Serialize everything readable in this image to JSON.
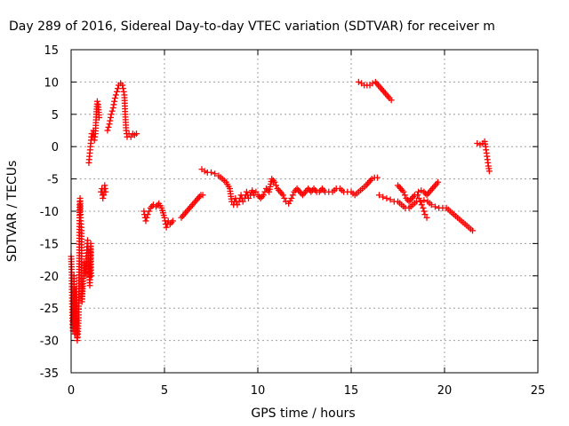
{
  "chart_data": {
    "type": "scatter",
    "title": "Day 289 of 2016, Sidereal Day-to-day VTEC variation (SDTVAR) for receiver m",
    "xlabel": "GPS time / hours",
    "ylabel": "SDTVAR / TECUs",
    "xlim": [
      0,
      25
    ],
    "ylim": [
      -35,
      15
    ],
    "xticks": [
      0,
      5,
      10,
      15,
      20,
      25
    ],
    "yticks": [
      -35,
      -30,
      -25,
      -20,
      -15,
      -10,
      -5,
      0,
      5,
      10,
      15
    ],
    "grid": true,
    "marker": "plus",
    "color": "#ff0000",
    "series": [
      {
        "points": [
          [
            0.0,
            -17.0
          ],
          [
            0.03,
            -19.0
          ],
          [
            0.05,
            -23.0
          ],
          [
            0.07,
            -27.0
          ],
          [
            0.1,
            -28.5
          ],
          [
            0.13,
            -26.0
          ],
          [
            0.15,
            -20.0
          ],
          [
            0.18,
            -24.0
          ],
          [
            0.2,
            -29.0
          ],
          [
            0.23,
            -27.0
          ],
          [
            0.25,
            -22.0
          ],
          [
            0.28,
            -25.0
          ],
          [
            0.3,
            -28.0
          ],
          [
            0.33,
            -30.0
          ],
          [
            0.36,
            -29.0
          ],
          [
            0.4,
            -26.5
          ],
          [
            0.42,
            -22.0
          ],
          [
            0.44,
            -16.0
          ],
          [
            0.45,
            -11.0
          ],
          [
            0.46,
            -9.0
          ],
          [
            0.48,
            -8.0
          ],
          [
            0.5,
            -10.0
          ],
          [
            0.52,
            -11.5
          ],
          [
            0.55,
            -13.0
          ],
          [
            0.58,
            -24.0
          ],
          [
            0.62,
            -22.0
          ],
          [
            0.66,
            -20.0
          ],
          [
            0.7,
            -18.0
          ],
          [
            0.75,
            -20.0
          ],
          [
            0.8,
            -19.0
          ],
          [
            0.82,
            -17.0
          ],
          [
            0.85,
            -15.5
          ],
          [
            0.88,
            -14.5
          ],
          [
            0.9,
            -16.0
          ],
          [
            0.95,
            -18.5
          ],
          [
            1.0,
            -21.5
          ],
          [
            1.03,
            -17.0
          ],
          [
            1.05,
            -15.0
          ],
          [
            1.07,
            -20.0
          ]
        ]
      },
      {
        "points": [
          [
            0.95,
            -2.5
          ],
          [
            1.0,
            -1.0
          ],
          [
            1.05,
            0.5
          ],
          [
            1.1,
            2.0
          ],
          [
            1.15,
            1.5
          ],
          [
            1.2,
            2.5
          ],
          [
            1.25,
            1.0
          ],
          [
            1.3,
            2.0
          ],
          [
            1.35,
            5.0
          ],
          [
            1.4,
            7.0
          ],
          [
            1.45,
            6.5
          ],
          [
            1.5,
            4.5
          ]
        ]
      },
      {
        "points": [
          [
            1.6,
            -7.0
          ],
          [
            1.65,
            -6.5
          ],
          [
            1.7,
            -8.0
          ],
          [
            1.75,
            -7.5
          ],
          [
            1.8,
            -6.0
          ],
          [
            1.85,
            -7.0
          ]
        ]
      },
      {
        "points": [
          [
            1.95,
            2.5
          ],
          [
            2.05,
            3.5
          ],
          [
            2.15,
            5.0
          ],
          [
            2.25,
            6.0
          ],
          [
            2.35,
            7.5
          ],
          [
            2.45,
            8.5
          ],
          [
            2.55,
            9.5
          ],
          [
            2.65,
            9.8
          ],
          [
            2.75,
            9.5
          ],
          [
            2.85,
            8.0
          ],
          [
            2.9,
            5.0
          ],
          [
            2.95,
            2.5
          ],
          [
            3.0,
            1.5
          ],
          [
            3.1,
            2.0
          ],
          [
            3.2,
            1.5
          ],
          [
            3.3,
            2.0
          ],
          [
            3.4,
            1.8
          ],
          [
            3.5,
            2.0
          ]
        ]
      },
      {
        "points": [
          [
            3.9,
            -10.0
          ],
          [
            4.0,
            -11.5
          ],
          [
            4.1,
            -10.5
          ],
          [
            4.25,
            -9.5
          ],
          [
            4.4,
            -9.0
          ],
          [
            4.55,
            -9.3
          ],
          [
            4.7,
            -8.8
          ],
          [
            4.85,
            -9.5
          ],
          [
            5.0,
            -11.0
          ],
          [
            5.1,
            -12.5
          ],
          [
            5.2,
            -11.5
          ],
          [
            5.3,
            -12.0
          ],
          [
            5.45,
            -11.5
          ]
        ]
      },
      {
        "points": [
          [
            5.9,
            -11.0
          ],
          [
            6.05,
            -10.5
          ],
          [
            6.2,
            -10.0
          ],
          [
            6.35,
            -9.5
          ],
          [
            6.5,
            -9.0
          ],
          [
            6.65,
            -8.5
          ],
          [
            6.8,
            -8.0
          ],
          [
            6.95,
            -7.5
          ],
          [
            7.05,
            -7.5
          ]
        ]
      },
      {
        "points": [
          [
            7.0,
            -3.5
          ],
          [
            7.15,
            -3.8
          ],
          [
            7.3,
            -4.0
          ],
          [
            7.5,
            -4.0
          ],
          [
            7.7,
            -4.2
          ],
          [
            7.9,
            -4.5
          ],
          [
            8.1,
            -5.0
          ],
          [
            8.3,
            -5.5
          ],
          [
            8.5,
            -6.5
          ],
          [
            8.6,
            -8.5
          ],
          [
            8.7,
            -9.0
          ],
          [
            8.8,
            -8.0
          ],
          [
            8.9,
            -9.0
          ],
          [
            9.0,
            -8.5
          ],
          [
            9.1,
            -7.5
          ],
          [
            9.2,
            -8.5
          ],
          [
            9.3,
            -8.0
          ],
          [
            9.4,
            -7.0
          ],
          [
            9.5,
            -8.0
          ],
          [
            9.6,
            -7.5
          ],
          [
            9.7,
            -6.8
          ],
          [
            9.8,
            -7.5
          ],
          [
            9.9,
            -7.0
          ],
          [
            10.0,
            -7.5
          ],
          [
            10.15,
            -8.0
          ],
          [
            10.3,
            -7.5
          ],
          [
            10.45,
            -6.5
          ],
          [
            10.6,
            -7.0
          ],
          [
            10.75,
            -5.0
          ],
          [
            10.9,
            -5.5
          ],
          [
            11.05,
            -6.5
          ],
          [
            11.2,
            -7.0
          ],
          [
            11.35,
            -7.5
          ],
          [
            11.5,
            -8.5
          ],
          [
            11.65,
            -8.8
          ],
          [
            11.8,
            -8.0
          ],
          [
            11.95,
            -7.0
          ],
          [
            12.1,
            -6.5
          ],
          [
            12.25,
            -7.0
          ],
          [
            12.4,
            -7.5
          ],
          [
            12.55,
            -7.0
          ],
          [
            12.7,
            -6.5
          ],
          [
            12.85,
            -7.0
          ],
          [
            13.0,
            -6.5
          ],
          [
            13.15,
            -7.0
          ],
          [
            13.3,
            -7.0
          ],
          [
            13.45,
            -6.5
          ],
          [
            13.6,
            -7.0
          ],
          [
            13.8,
            -7.0
          ],
          [
            14.0,
            -7.0
          ],
          [
            14.2,
            -6.5
          ],
          [
            14.4,
            -6.5
          ],
          [
            14.6,
            -7.0
          ],
          [
            14.8,
            -7.0
          ],
          [
            15.0,
            -7.0
          ],
          [
            15.2,
            -7.5
          ],
          [
            15.4,
            -7.0
          ],
          [
            15.6,
            -6.5
          ],
          [
            15.8,
            -6.0
          ],
          [
            15.95,
            -5.5
          ],
          [
            16.1,
            -5.0
          ],
          [
            16.25,
            -4.8
          ],
          [
            16.4,
            -4.8
          ]
        ]
      },
      {
        "points": [
          [
            15.4,
            10.0
          ],
          [
            15.55,
            9.8
          ],
          [
            15.7,
            9.5
          ],
          [
            15.85,
            9.5
          ],
          [
            16.0,
            9.5
          ],
          [
            16.15,
            9.8
          ],
          [
            16.3,
            10.0
          ],
          [
            16.45,
            9.5
          ],
          [
            16.6,
            9.0
          ],
          [
            16.75,
            8.5
          ],
          [
            16.9,
            8.0
          ],
          [
            17.05,
            7.5
          ],
          [
            17.15,
            7.2
          ]
        ]
      },
      {
        "points": [
          [
            16.5,
            -7.5
          ],
          [
            16.7,
            -7.8
          ],
          [
            16.9,
            -8.0
          ],
          [
            17.1,
            -8.2
          ],
          [
            17.3,
            -8.5
          ],
          [
            17.5,
            -8.5
          ],
          [
            17.7,
            -9.0
          ],
          [
            17.9,
            -9.5
          ],
          [
            18.1,
            -9.5
          ],
          [
            18.3,
            -9.0
          ],
          [
            18.5,
            -8.5
          ],
          [
            18.7,
            -8.5
          ],
          [
            18.9,
            -8.3
          ],
          [
            19.1,
            -8.5
          ],
          [
            19.3,
            -9.0
          ],
          [
            19.5,
            -9.3
          ],
          [
            19.7,
            -9.5
          ],
          [
            19.9,
            -9.5
          ],
          [
            20.1,
            -9.5
          ],
          [
            20.3,
            -10.0
          ],
          [
            20.5,
            -10.5
          ],
          [
            20.7,
            -11.0
          ],
          [
            20.9,
            -11.5
          ],
          [
            21.1,
            -12.0
          ],
          [
            21.3,
            -12.5
          ],
          [
            21.5,
            -13.0
          ]
        ]
      },
      {
        "points": [
          [
            17.5,
            -6.0
          ],
          [
            17.65,
            -6.5
          ],
          [
            17.8,
            -7.0
          ],
          [
            17.95,
            -8.0
          ],
          [
            18.1,
            -8.5
          ],
          [
            18.25,
            -8.0
          ],
          [
            18.4,
            -7.5
          ],
          [
            18.55,
            -7.5
          ],
          [
            18.7,
            -8.5
          ],
          [
            18.85,
            -9.5
          ],
          [
            18.95,
            -10.5
          ],
          [
            19.05,
            -11.0
          ]
        ]
      },
      {
        "points": [
          [
            18.6,
            -7.0
          ],
          [
            18.75,
            -6.8
          ],
          [
            18.9,
            -7.0
          ],
          [
            19.05,
            -7.5
          ],
          [
            19.2,
            -7.0
          ],
          [
            19.35,
            -6.5
          ],
          [
            19.5,
            -6.0
          ],
          [
            19.65,
            -5.5
          ]
        ]
      },
      {
        "points": [
          [
            21.75,
            0.5
          ],
          [
            21.9,
            0.3
          ],
          [
            22.05,
            0.5
          ],
          [
            22.15,
            0.8
          ],
          [
            22.2,
            0.0
          ],
          [
            22.25,
            -1.0
          ],
          [
            22.3,
            -2.0
          ],
          [
            22.35,
            -3.0
          ],
          [
            22.4,
            -3.8
          ]
        ]
      }
    ]
  }
}
